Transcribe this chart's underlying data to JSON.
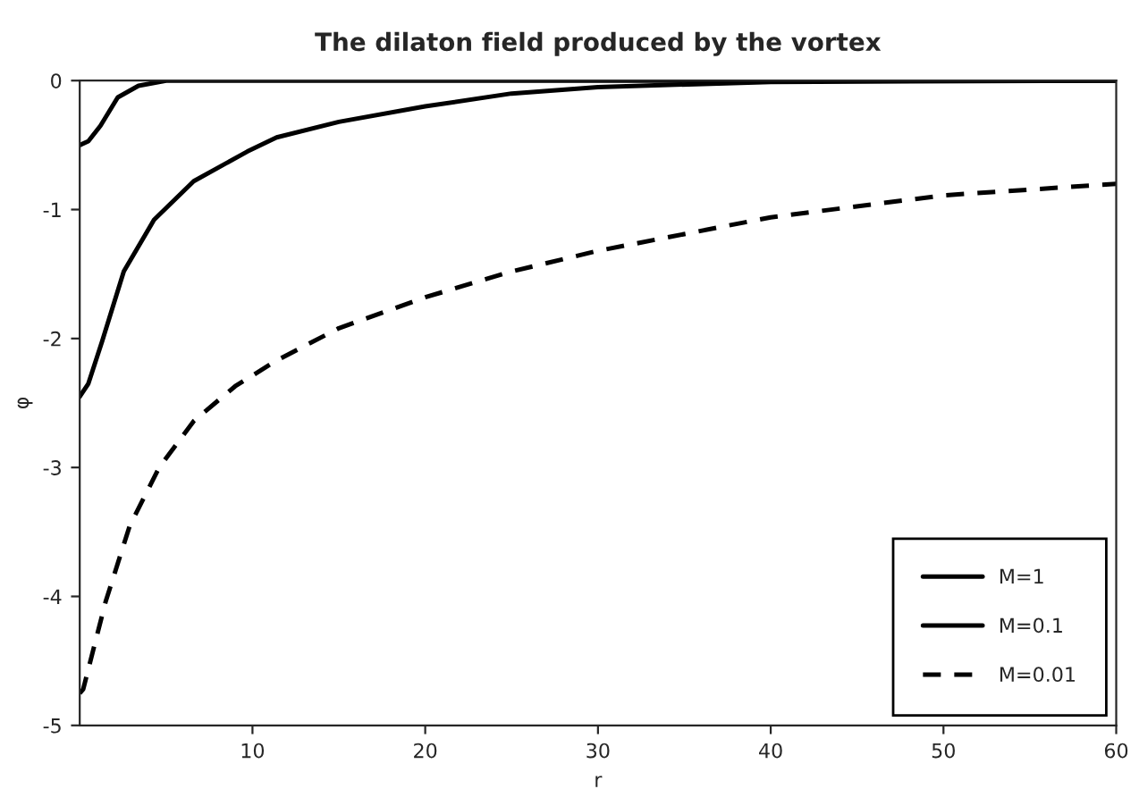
{
  "chart_data": {
    "type": "line",
    "title": "The dilaton field produced by the vortex",
    "xlabel": "r",
    "ylabel": "φ",
    "xlim": [
      0,
      60
    ],
    "xticks": [
      10,
      20,
      30,
      40,
      50,
      60
    ],
    "ylim": [
      -5,
      0
    ],
    "yticks": [
      -5,
      -4,
      -3,
      -2,
      -1,
      0
    ],
    "grid": false,
    "legend": "lower right",
    "marker": "none",
    "series": [
      {
        "name": "M=1",
        "color": "#000000",
        "line_style": "solid",
        "x": [
          0,
          0.5,
          1.2,
          2.2,
          3.4,
          5,
          10,
          20,
          40,
          60
        ],
        "values": [
          -0.5,
          -0.47,
          -0.35,
          -0.13,
          -0.04,
          0,
          0,
          0,
          0,
          0
        ]
      },
      {
        "name": "M=0.1",
        "color": "#000000",
        "line_style": "solid",
        "x": [
          0,
          0.5,
          1.3,
          2.55,
          4.3,
          6.6,
          9.7,
          11.4,
          15,
          20,
          25,
          30,
          40,
          60
        ],
        "values": [
          -2.45,
          -2.35,
          -2.02,
          -1.48,
          -1.08,
          -0.78,
          -0.55,
          -0.44,
          -0.32,
          -0.2,
          -0.1,
          -0.05,
          -0.01,
          0
        ]
      },
      {
        "name": "M=0.01",
        "color": "#000000",
        "line_style": "dashed",
        "x": [
          0,
          0.2,
          1.5,
          2.9,
          4.6,
          6.6,
          9,
          11.4,
          15,
          20,
          25,
          30,
          40,
          50,
          60
        ],
        "values": [
          -4.75,
          -4.72,
          -4.04,
          -3.45,
          -3.0,
          -2.64,
          -2.37,
          -2.17,
          -1.92,
          -1.68,
          -1.48,
          -1.32,
          -1.06,
          -0.89,
          -0.8
        ]
      }
    ]
  }
}
